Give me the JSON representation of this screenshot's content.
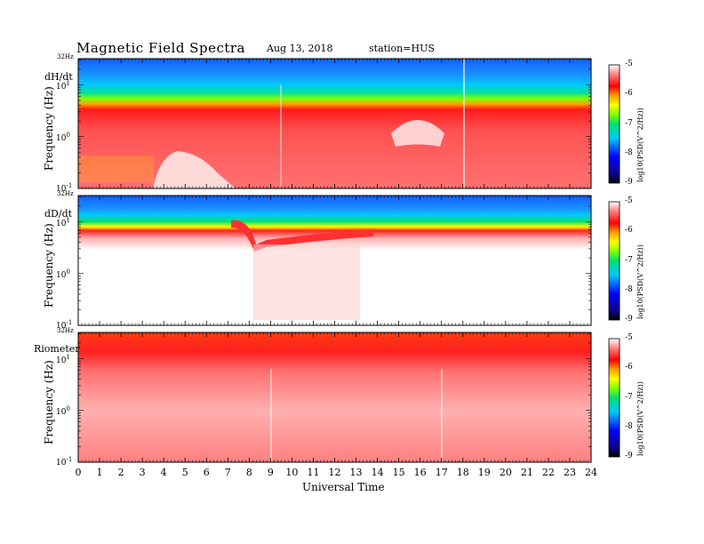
{
  "title": "Magnetic  Field  Spectra",
  "date": "Aug 13, 2018",
  "station": "station=HUS",
  "colors": {
    "scale": [
      "#000000",
      "#10008a",
      "#0000ff",
      "#00c8ff",
      "#00e070",
      "#80ff00",
      "#ffff00",
      "#ffa000",
      "#ff0000",
      "#ff8080",
      "#ffffff"
    ]
  },
  "chart_data": [
    {
      "type": "heatmap",
      "panel_label": "dH/dt",
      "ylabel": "Frequency  (Hz)",
      "ytick_labels": [
        {
          "base": "10",
          "exp": "1"
        },
        {
          "base": "10",
          "exp": "0"
        },
        {
          "base": "10",
          "exp": "-1"
        }
      ],
      "ytop_label": "32Hz",
      "ylim": [
        0.1,
        32
      ],
      "yscale": "log",
      "xlim": [
        0,
        24
      ],
      "colorbar": {
        "label": "log10(PSD(V^2/Hz))",
        "ticks": [
          "-5",
          "-6",
          "-7",
          "-8",
          "-9"
        ],
        "range": [
          -9,
          -5
        ]
      },
      "bands": [
        {
          "from_hz": 0.1,
          "to_hz": 4.5,
          "level": -6.0
        },
        {
          "from_hz": 4.5,
          "to_hz": 7,
          "level": -6.8
        },
        {
          "from_hz": 7,
          "to_hz": 12,
          "level": -7.6
        },
        {
          "from_hz": 12,
          "to_hz": 32,
          "level": -8.2
        }
      ]
    },
    {
      "type": "heatmap",
      "panel_label": "dD/dt",
      "ylabel": "Frequency  (Hz)",
      "ytick_labels": [
        {
          "base": "10",
          "exp": "1"
        },
        {
          "base": "10",
          "exp": "0"
        },
        {
          "base": "10",
          "exp": "-1"
        }
      ],
      "ytop_label": "32Hz",
      "ylim": [
        0.1,
        32
      ],
      "yscale": "log",
      "xlim": [
        0,
        24
      ],
      "colorbar": {
        "label": "log10(PSD(V^2/Hz))",
        "ticks": [
          "-5",
          "-6",
          "-7",
          "-8",
          "-9"
        ],
        "range": [
          -9,
          -5
        ]
      },
      "bands": [
        {
          "from_hz": 0.1,
          "to_hz": 6,
          "level": -5.2
        },
        {
          "from_hz": 6,
          "to_hz": 8,
          "level": -6.0
        },
        {
          "from_hz": 8,
          "to_hz": 14,
          "level": -7.2
        },
        {
          "from_hz": 14,
          "to_hz": 32,
          "level": -8.2
        }
      ]
    },
    {
      "type": "heatmap",
      "panel_label": "Riometer",
      "ylabel": "Frequency  (Hz)",
      "ytick_labels": [
        {
          "base": "10",
          "exp": "1"
        },
        {
          "base": "10",
          "exp": "0"
        },
        {
          "base": "10",
          "exp": "-1"
        }
      ],
      "ytop_label": "32Hz",
      "ylim": [
        0.1,
        32
      ],
      "yscale": "log",
      "xlim": [
        0,
        24
      ],
      "colorbar": {
        "label": "log10(PSD(V^2/Hz))",
        "ticks": [
          "-5",
          "-6",
          "-7",
          "-8",
          "-9"
        ],
        "range": [
          -9,
          -5
        ]
      },
      "bands": [
        {
          "from_hz": 0.1,
          "to_hz": 8,
          "level": -5.6
        },
        {
          "from_hz": 8,
          "to_hz": 32,
          "level": -6.1
        }
      ]
    }
  ],
  "xaxis": {
    "label": "Universal  Time",
    "ticks": [
      "0",
      "1",
      "2",
      "3",
      "4",
      "5",
      "6",
      "7",
      "8",
      "9",
      "10",
      "11",
      "12",
      "13",
      "14",
      "15",
      "16",
      "17",
      "18",
      "19",
      "20",
      "21",
      "22",
      "23",
      "24"
    ]
  }
}
